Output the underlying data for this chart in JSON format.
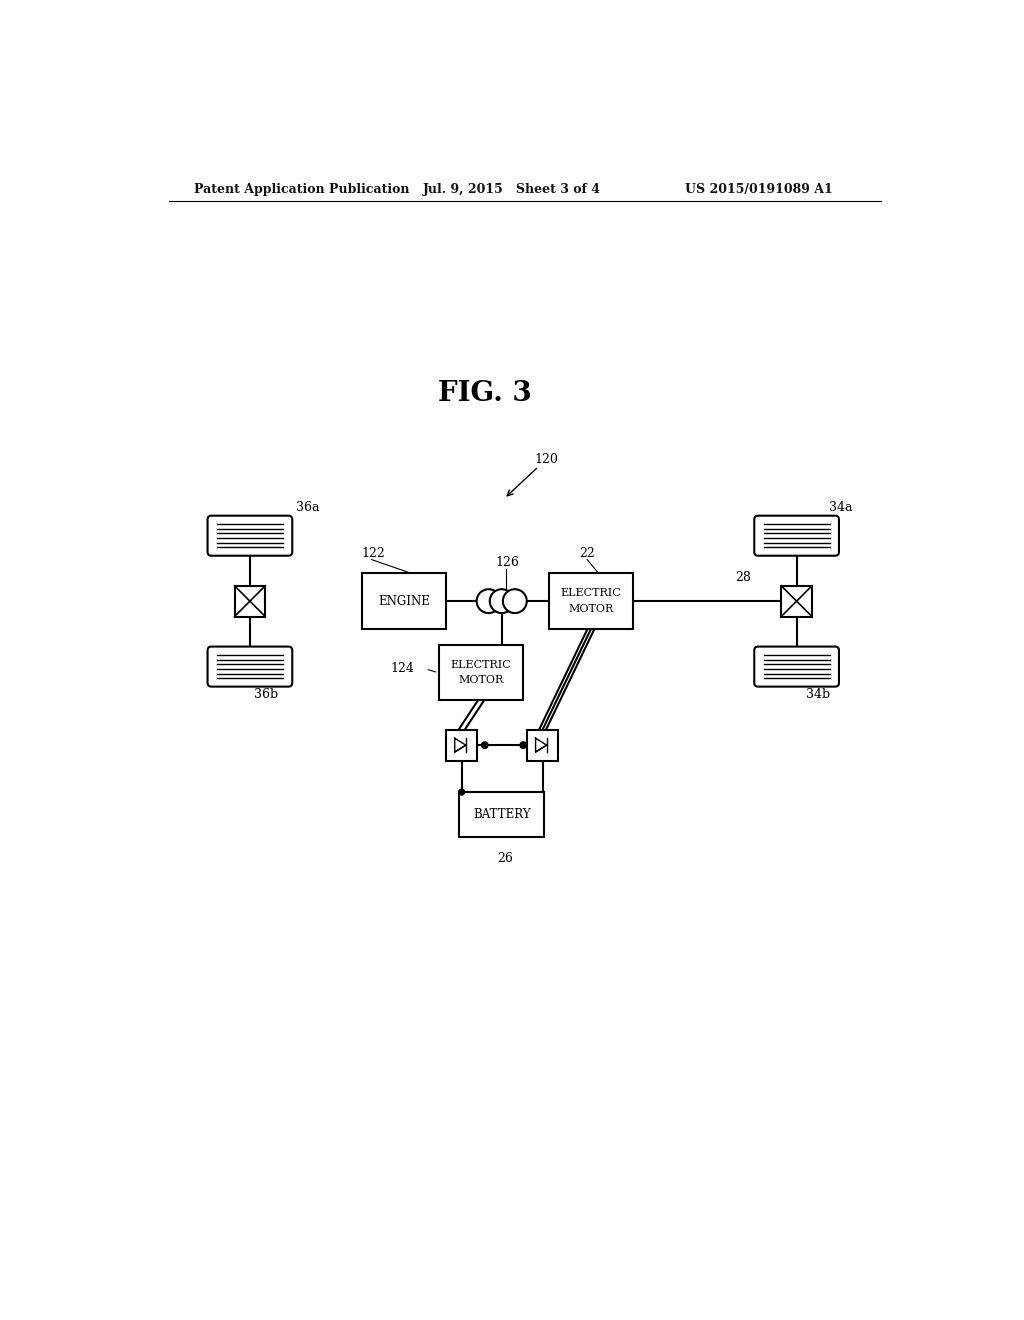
{
  "title": "FIG. 3",
  "header_left": "Patent Application Publication",
  "header_mid": "Jul. 9, 2015   Sheet 3 of 4",
  "header_right": "US 2015/0191089 A1",
  "bg_color": "#ffffff",
  "line_color": "#000000",
  "label_120": "120",
  "label_122": "122",
  "label_124": "124",
  "label_126": "126",
  "label_22": "22",
  "label_26": "26",
  "label_28": "28",
  "label_34a": "34a",
  "label_34b": "34b",
  "label_36a": "36a",
  "label_36b": "36b"
}
